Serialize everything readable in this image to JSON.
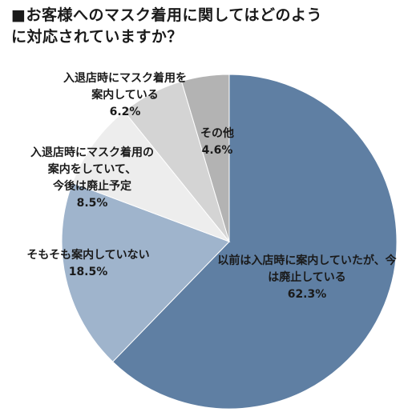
{
  "chart_data": {
    "type": "pie",
    "title": "■お客様へのマスク着用に関してはどのように対応されていますか？",
    "title_lines": [
      "■お客様へのマスク着用に関してはどのよう",
      "に対応されていますか？"
    ],
    "unit": "%",
    "start": "top",
    "direction": "clockwise",
    "slices": [
      {
        "label_lines": [
          "以前は入店時に案内していたが、今",
          "は廃止している"
        ],
        "value": 62.3,
        "value_text": "62.3%",
        "color": "#5f7fa3"
      },
      {
        "label_lines": [
          "そもそも案内していない"
        ],
        "value": 18.5,
        "value_text": "18.5%",
        "color": "#9fb4cc"
      },
      {
        "label_lines": [
          "入退店時にマスク着用の",
          "案内をしていて、",
          "今後は廃止予定"
        ],
        "value": 8.5,
        "value_text": "8.5%",
        "color": "#ededed"
      },
      {
        "label_lines": [
          "入退店時にマスク着用を",
          "案内している"
        ],
        "value": 6.2,
        "value_text": "6.2%",
        "color": "#d4d4d4"
      },
      {
        "label_lines": [
          "その他"
        ],
        "value": 4.6,
        "value_text": "4.6%",
        "color": "#b3b3b3"
      }
    ]
  }
}
